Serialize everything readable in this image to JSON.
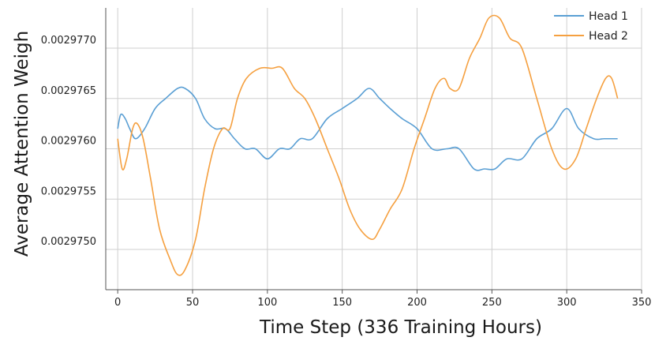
{
  "chart_data": {
    "type": "line",
    "title": "",
    "xlabel": "Time Step (336 Training Hours)",
    "ylabel": "Average Attention Weigh",
    "xlim": [
      -8,
      350
    ],
    "ylim": [
      0.0029746,
      0.0029774
    ],
    "x_ticks": [
      0,
      50,
      100,
      150,
      200,
      250,
      300,
      350
    ],
    "y_ticks": [
      {
        "value": 0.002975,
        "label": "0.0029750"
      },
      {
        "value": 0.0029755,
        "label": "0.0029755"
      },
      {
        "value": 0.002976,
        "label": "0.0029760"
      },
      {
        "value": 0.0029765,
        "label": "0.0029765"
      },
      {
        "value": 0.002977,
        "label": "0.0029770"
      }
    ],
    "grid": true,
    "legend_position": "top-right",
    "series": [
      {
        "name": "Head 1",
        "color": "#5a9fd4",
        "points": [
          [
            0,
            0.0029762
          ],
          [
            2,
            0.00297634
          ],
          [
            5,
            0.0029763
          ],
          [
            8,
            0.0029762
          ],
          [
            12,
            0.0029761
          ],
          [
            18,
            0.0029762
          ],
          [
            25,
            0.0029764
          ],
          [
            32,
            0.0029765
          ],
          [
            40,
            0.0029766
          ],
          [
            45,
            0.0029766
          ],
          [
            52,
            0.0029765
          ],
          [
            58,
            0.0029763
          ],
          [
            65,
            0.0029762
          ],
          [
            72,
            0.0029762
          ],
          [
            78,
            0.0029761
          ],
          [
            85,
            0.002976
          ],
          [
            92,
            0.002976
          ],
          [
            100,
            0.0029759
          ],
          [
            108,
            0.002976
          ],
          [
            115,
            0.002976
          ],
          [
            122,
            0.0029761
          ],
          [
            130,
            0.0029761
          ],
          [
            140,
            0.0029763
          ],
          [
            150,
            0.0029764
          ],
          [
            160,
            0.0029765
          ],
          [
            168,
            0.0029766
          ],
          [
            175,
            0.0029765
          ],
          [
            182,
            0.0029764
          ],
          [
            190,
            0.0029763
          ],
          [
            200,
            0.0029762
          ],
          [
            210,
            0.002976
          ],
          [
            220,
            0.002976
          ],
          [
            228,
            0.002976
          ],
          [
            238,
            0.0029758
          ],
          [
            245,
            0.0029758
          ],
          [
            252,
            0.0029758
          ],
          [
            260,
            0.0029759
          ],
          [
            270,
            0.0029759
          ],
          [
            280,
            0.0029761
          ],
          [
            290,
            0.0029762
          ],
          [
            300,
            0.0029764
          ],
          [
            308,
            0.0029762
          ],
          [
            318,
            0.0029761
          ],
          [
            325,
            0.0029761
          ],
          [
            334,
            0.0029761
          ]
        ]
      },
      {
        "name": "Head 2",
        "color": "#f5a040",
        "points": [
          [
            0,
            0.0029761
          ],
          [
            3,
            0.0029758
          ],
          [
            6,
            0.0029759
          ],
          [
            10,
            0.0029762
          ],
          [
            13,
            0.00297625
          ],
          [
            17,
            0.0029761
          ],
          [
            22,
            0.0029757
          ],
          [
            28,
            0.0029752
          ],
          [
            35,
            0.0029749
          ],
          [
            40,
            0.00297475
          ],
          [
            45,
            0.0029748
          ],
          [
            52,
            0.0029751
          ],
          [
            58,
            0.0029756
          ],
          [
            64,
            0.002976
          ],
          [
            70,
            0.0029762
          ],
          [
            75,
            0.0029762
          ],
          [
            80,
            0.0029765
          ],
          [
            86,
            0.0029767
          ],
          [
            95,
            0.0029768
          ],
          [
            103,
            0.0029768
          ],
          [
            110,
            0.0029768
          ],
          [
            118,
            0.0029766
          ],
          [
            125,
            0.0029765
          ],
          [
            132,
            0.0029763
          ],
          [
            140,
            0.002976
          ],
          [
            148,
            0.0029757
          ],
          [
            155,
            0.0029754
          ],
          [
            162,
            0.0029752
          ],
          [
            170,
            0.0029751
          ],
          [
            175,
            0.0029752
          ],
          [
            182,
            0.0029754
          ],
          [
            190,
            0.0029756
          ],
          [
            198,
            0.002976
          ],
          [
            205,
            0.0029763
          ],
          [
            212,
            0.0029766
          ],
          [
            218,
            0.0029767
          ],
          [
            222,
            0.0029766
          ],
          [
            228,
            0.0029766
          ],
          [
            235,
            0.0029769
          ],
          [
            242,
            0.0029771
          ],
          [
            248,
            0.0029773
          ],
          [
            255,
            0.0029773
          ],
          [
            262,
            0.0029771
          ],
          [
            270,
            0.002977
          ],
          [
            280,
            0.0029765
          ],
          [
            290,
            0.002976
          ],
          [
            298,
            0.0029758
          ],
          [
            306,
            0.0029759
          ],
          [
            313,
            0.0029762
          ],
          [
            320,
            0.0029765
          ],
          [
            326,
            0.0029767
          ],
          [
            330,
            0.0029767
          ],
          [
            334,
            0.0029765
          ]
        ]
      }
    ]
  }
}
